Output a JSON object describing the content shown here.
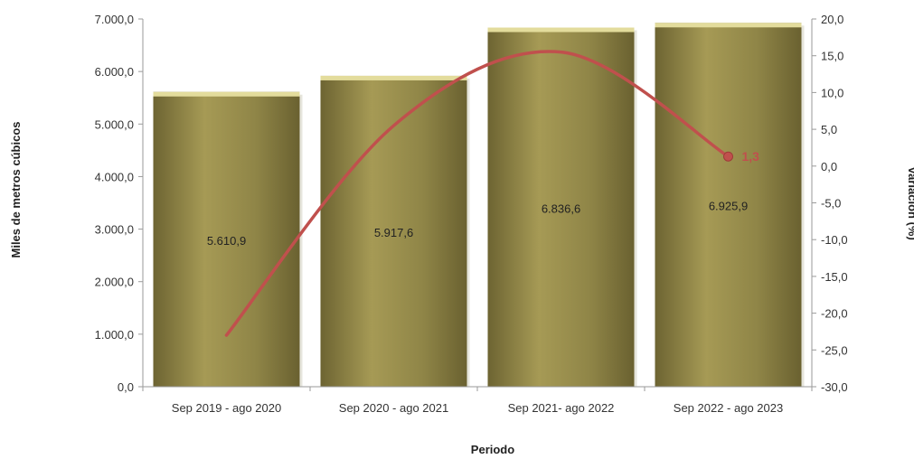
{
  "chart_data": {
    "type": "bar",
    "categories": [
      "Sep 2019 - ago 2020",
      "Sep 2020 - ago 2021",
      "Sep 2021- ago 2022",
      "Sep 2022 - ago 2023"
    ],
    "series": [
      {
        "type": "bar",
        "axis": "left",
        "values": [
          5610.9,
          5917.6,
          6836.6,
          6925.9
        ],
        "data_labels": [
          "5.610,9",
          "5.917,6",
          "6.836,6",
          "6.925,9"
        ]
      },
      {
        "type": "line",
        "axis": "right",
        "values": [
          -23.0,
          5.5,
          15.5,
          1.3
        ],
        "data_labels": [
          "",
          "",
          "",
          "1,3"
        ]
      }
    ],
    "xlabel": "Periodo",
    "ylabel": "Miles de metros cúbicos",
    "y2label": "Variación (%)",
    "ylim": [
      0,
      7000
    ],
    "y2lim": [
      -30,
      20
    ],
    "yticks": [
      "0,0",
      "1.000,0",
      "2.000,0",
      "3.000,0",
      "4.000,0",
      "5.000,0",
      "6.000,0",
      "7.000,0"
    ],
    "y2ticks": [
      "-30,0",
      "-25,0",
      "-20,0",
      "-15,0",
      "-10,0",
      "-5,0",
      "0,0",
      "5,0",
      "10,0",
      "15,0",
      "20,0"
    ],
    "grid": false,
    "legend": "none",
    "colors": {
      "bar": "#8f8547",
      "bar_light": "#b3a862",
      "bar_dark": "#6d6432",
      "bar_top": "#e3dc9c",
      "line": "#c0504d",
      "axis": "#9a9a9a"
    }
  }
}
